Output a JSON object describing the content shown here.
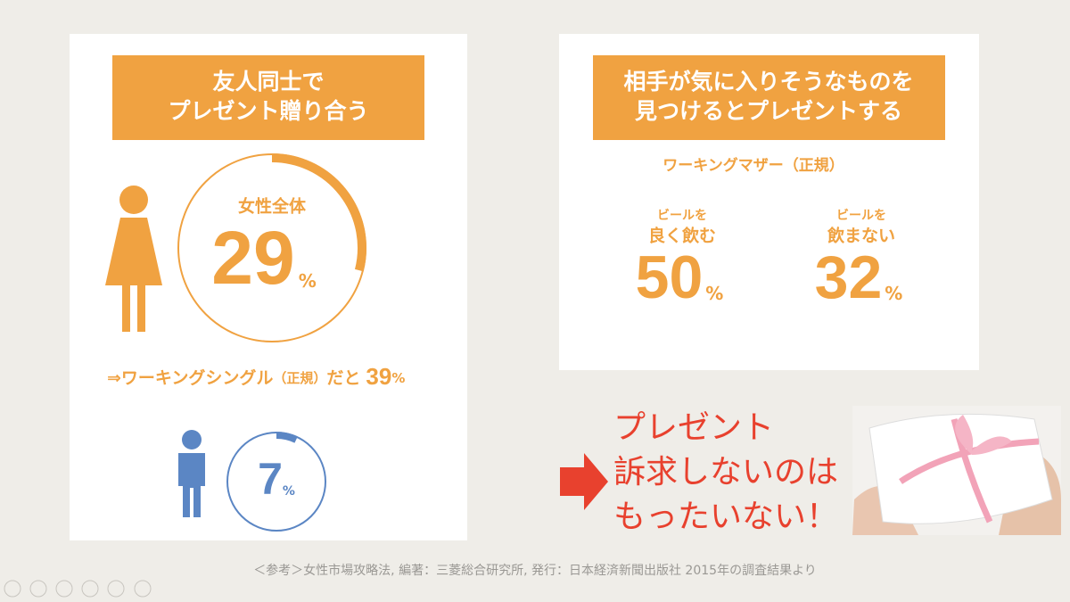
{
  "left_panel": {
    "header": [
      "友人同士で",
      "プレゼント贈り合う"
    ],
    "women": {
      "label": "女性全体",
      "value": 29,
      "unit": "%"
    },
    "note": {
      "prefix": "⇒ワーキングシングル",
      "paren": "（正規）",
      "suffix": "だと",
      "value": 39,
      "unit": "%"
    },
    "men": {
      "value": 7,
      "unit": "%"
    }
  },
  "right_panel": {
    "header": [
      "相手が気に入りそうなものを",
      "見つけるとプレゼントする"
    ],
    "subtitle": "ワーキングマザー（正規）",
    "rings": [
      {
        "label": [
          "ビールを",
          "良く飲む"
        ],
        "value": 50,
        "unit": "%"
      },
      {
        "label": [
          "ビールを",
          "飲まない"
        ],
        "value": 32,
        "unit": "%"
      }
    ]
  },
  "callout": [
    "プレゼント",
    "訴求しないのは",
    "もったいない！"
  ],
  "footer": "＜参考＞女性市場攻略法, 編著：三菱総合研究所, 発行：日本経済新聞出版社 2015年の調査結果より"
}
